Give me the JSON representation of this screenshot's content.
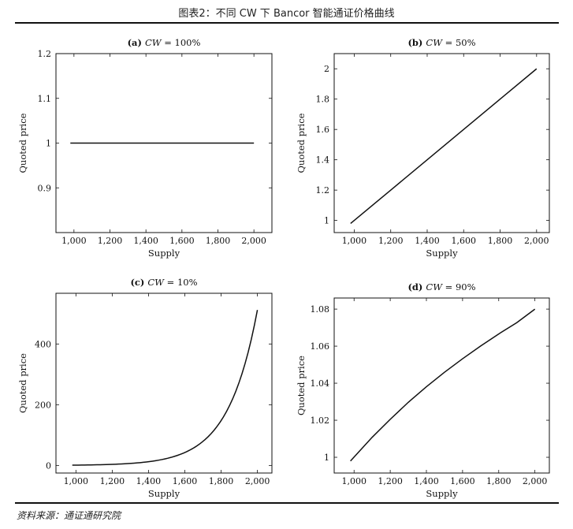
{
  "figure": {
    "title": "图表2：不同 CW 下 Bancor 智能通证价格曲线",
    "source": "资料来源：通证通研究院"
  },
  "chart_data": [
    {
      "type": "line",
      "title_prefix": "(a)",
      "title_var": "CW",
      "title_rest": " = 100%",
      "xlabel": "Supply",
      "ylabel": "Quoted price",
      "xlim": [
        900,
        2100
      ],
      "ylim": [
        0.8,
        1.2
      ],
      "xticks": [
        1000,
        1200,
        1400,
        1600,
        1800,
        2000
      ],
      "xtick_labels": [
        "1,000",
        "1,200",
        "1,400",
        "1,600",
        "1,800",
        "2,000"
      ],
      "yticks": [
        0.9,
        1,
        1.1,
        1.2
      ],
      "ytick_labels": [
        "0.9",
        "1",
        "1.1",
        "1.2"
      ],
      "series": [
        {
          "x": [
            980,
            1100,
            1200,
            1300,
            1400,
            1500,
            1600,
            1700,
            1800,
            1900,
            2000
          ],
          "y": [
            1,
            1,
            1,
            1,
            1,
            1,
            1,
            1,
            1,
            1,
            1
          ]
        }
      ]
    },
    {
      "type": "line",
      "title_prefix": "(b)",
      "title_var": "CW",
      "title_rest": " = 50%",
      "xlabel": "Supply",
      "ylabel": "Quoted price",
      "xlim": [
        890,
        2070
      ],
      "ylim": [
        0.92,
        2.1
      ],
      "xticks": [
        1000,
        1200,
        1400,
        1600,
        1800,
        2000
      ],
      "xtick_labels": [
        "1,000",
        "1,200",
        "1,400",
        "1,600",
        "1,800",
        "2,000"
      ],
      "yticks": [
        1,
        1.2,
        1.4,
        1.6,
        1.8,
        2
      ],
      "ytick_labels": [
        "1",
        "1.2",
        "1.4",
        "1.6",
        "1.8",
        "2"
      ],
      "series": [
        {
          "x": [
            980,
            1200,
            1400,
            1600,
            1800,
            2000
          ],
          "y": [
            0.98,
            1.2,
            1.4,
            1.6,
            1.8,
            2.0
          ]
        }
      ]
    },
    {
      "type": "line",
      "title_prefix": "(c)",
      "title_var": "CW",
      "title_rest": " = 10%",
      "xlabel": "Supply",
      "ylabel": "Quoted price",
      "xlim": [
        890,
        2080
      ],
      "ylim": [
        -25,
        567
      ],
      "xticks": [
        1000,
        1200,
        1400,
        1600,
        1800,
        2000
      ],
      "xtick_labels": [
        "1,000",
        "1,200",
        "1,400",
        "1,600",
        "1,800",
        "2,000"
      ],
      "yticks": [
        0,
        200,
        400
      ],
      "ytick_labels": [
        "0",
        "200",
        "400"
      ],
      "series": [
        {
          "x": [
            980,
            1050,
            1100,
            1150,
            1200,
            1250,
            1300,
            1350,
            1400,
            1450,
            1500,
            1550,
            1600,
            1650,
            1700,
            1750,
            1800,
            1850,
            1900,
            1950,
            2000
          ],
          "y": [
            0.9,
            1.5,
            2.1,
            3.3,
            4.3,
            5.9,
            8.2,
            11.0,
            14.8,
            19.7,
            25.6,
            33.3,
            42.9,
            54.8,
            69.8,
            88.3,
            110.9,
            138.3,
            171.8,
            212.2,
            512.0
          ]
        }
      ]
    },
    {
      "type": "line",
      "title_prefix": "(d)",
      "title_var": "CW",
      "title_rest": " = 90%",
      "xlabel": "Supply",
      "ylabel": "Quoted price",
      "xlim": [
        890,
        2080
      ],
      "ylim": [
        0.9915,
        1.086
      ],
      "xticks": [
        1000,
        1200,
        1400,
        1600,
        1800,
        2000
      ],
      "xtick_labels": [
        "1,000",
        "1,200",
        "1,400",
        "1,600",
        "1,800",
        "2,000"
      ],
      "yticks": [
        1,
        1.02,
        1.04,
        1.06,
        1.08
      ],
      "ytick_labels": [
        "1",
        "1.02",
        "1.04",
        "1.06",
        "1.08"
      ],
      "series": [
        {
          "x": [
            980,
            1100,
            1200,
            1300,
            1400,
            1500,
            1600,
            1700,
            1800,
            1900,
            2000
          ],
          "y": [
            0.998,
            1.0108,
            1.0205,
            1.0297,
            1.0381,
            1.0459,
            1.0532,
            1.0601,
            1.0666,
            1.0727,
            1.08
          ]
        }
      ]
    }
  ]
}
